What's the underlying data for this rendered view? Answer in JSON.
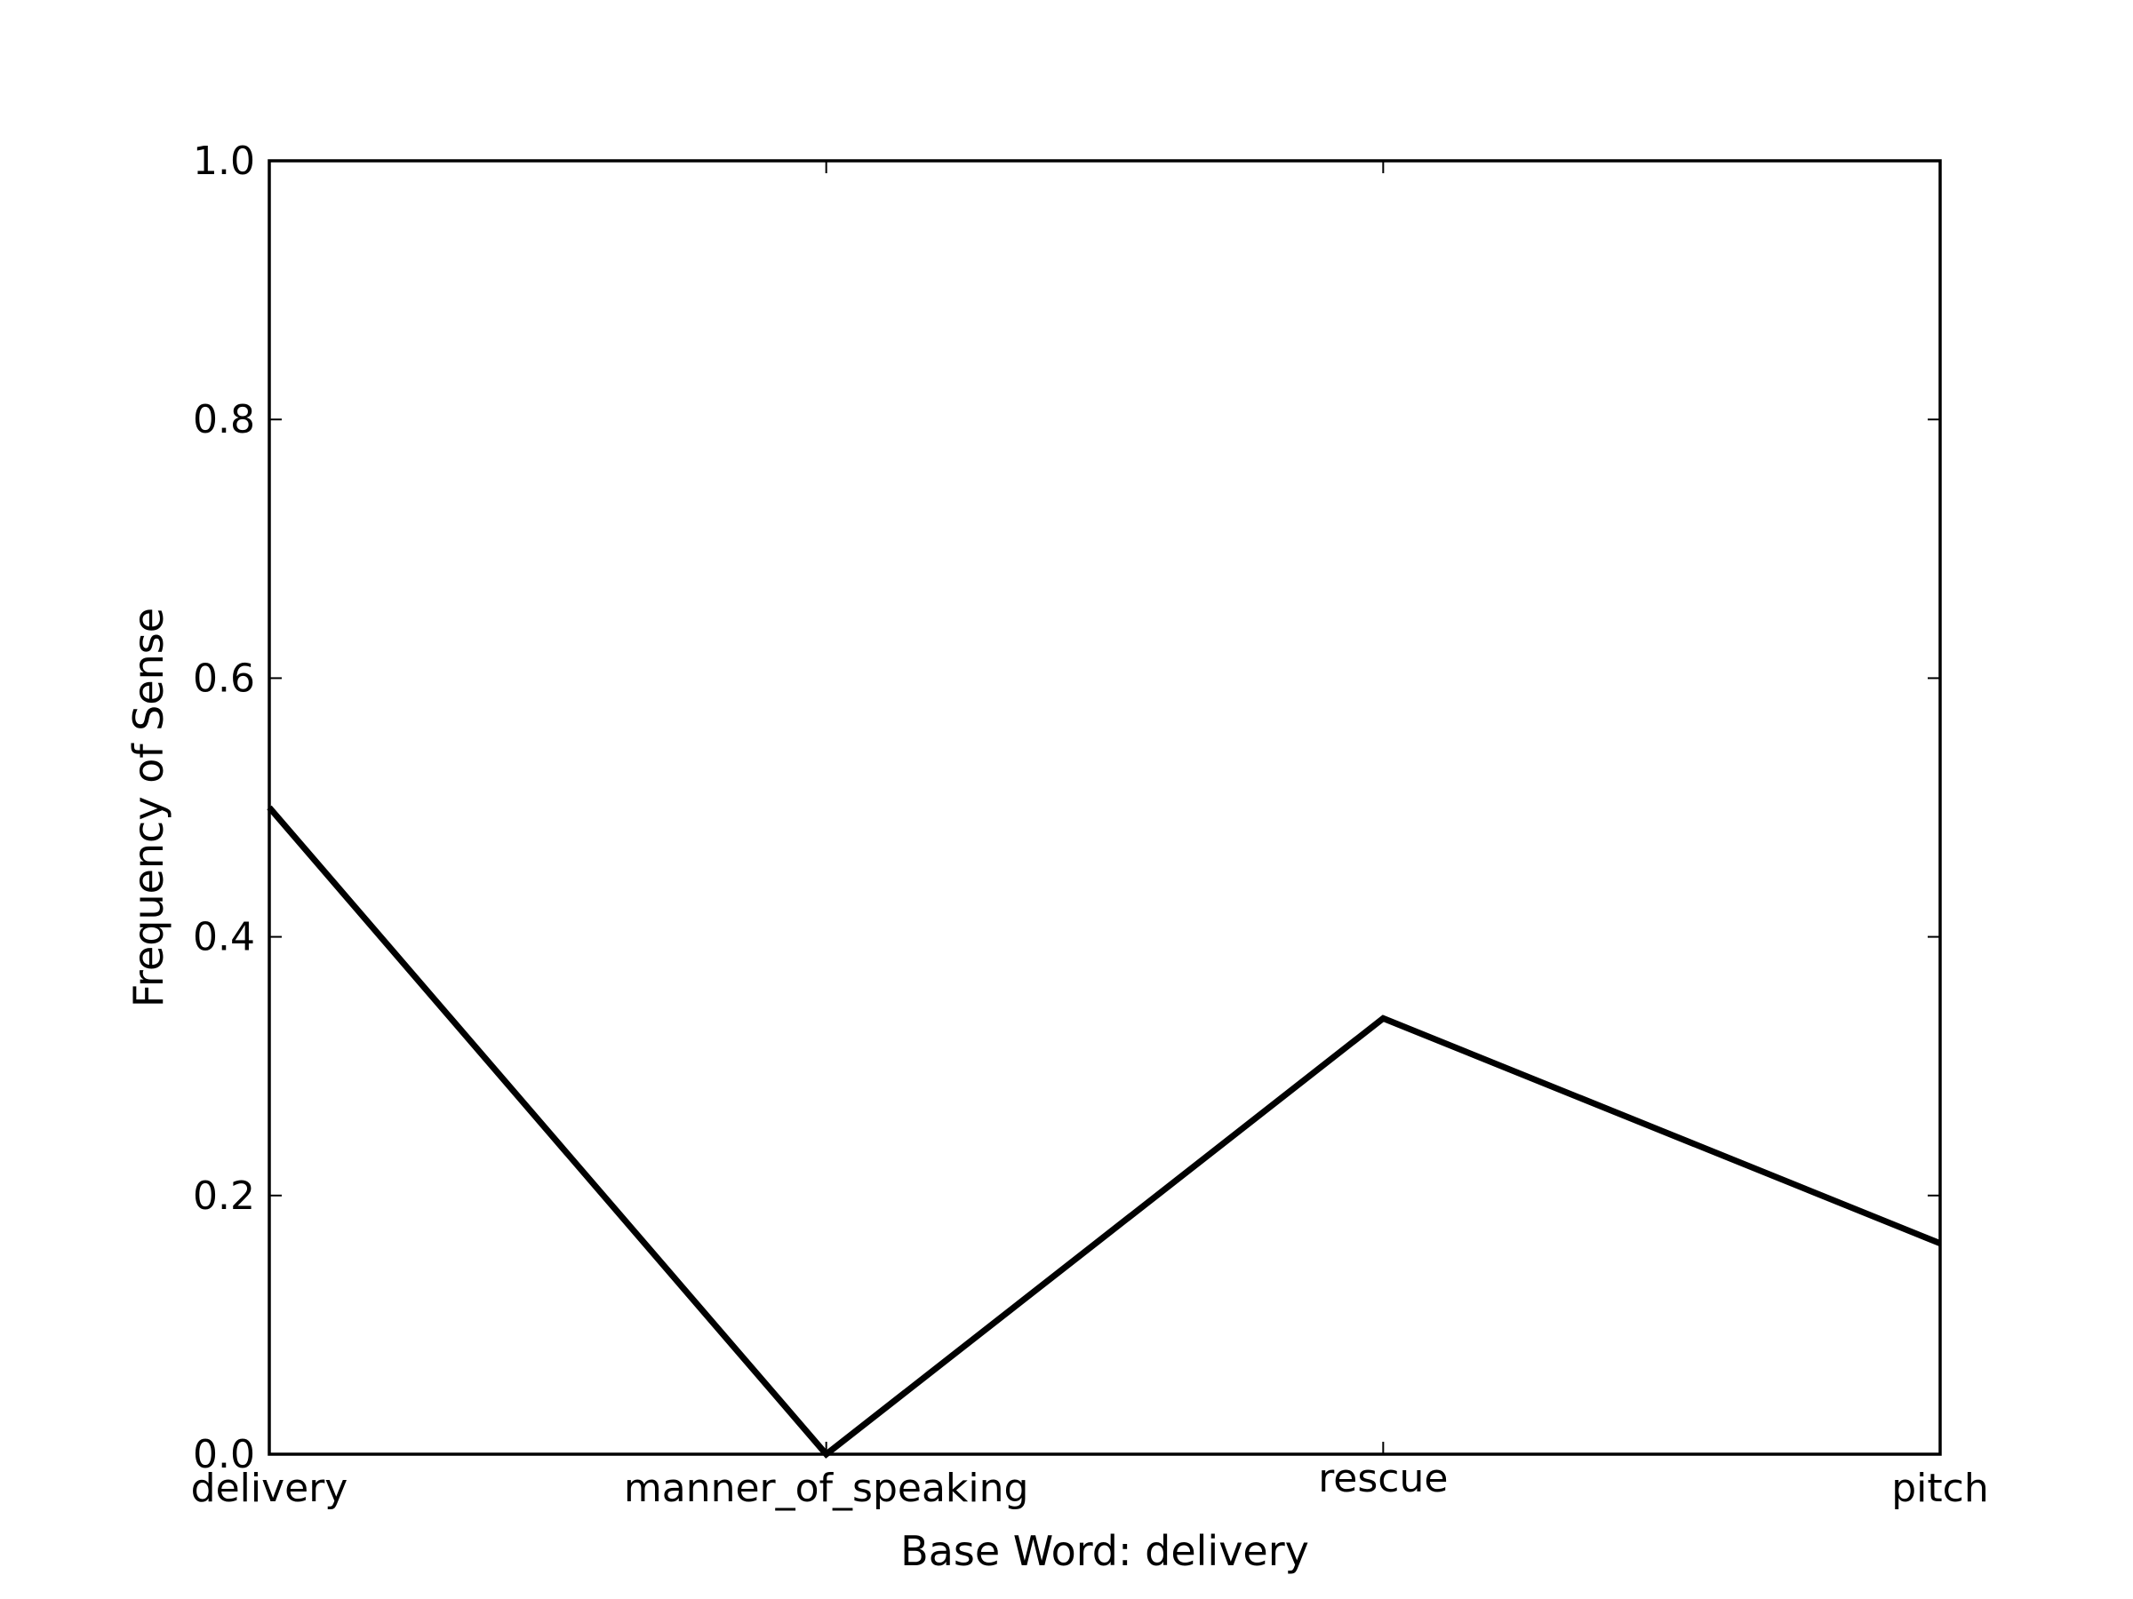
{
  "chart_data": {
    "type": "line",
    "categories": [
      "delivery",
      "manner_of_speaking",
      "rescue",
      "pitch"
    ],
    "series": [
      {
        "values": [
          0.5,
          0.0,
          0.337,
          0.163
        ]
      }
    ],
    "xlabel": "Base Word: delivery",
    "ylabel": "Frequency of Sense",
    "ylim": [
      0,
      1.0
    ],
    "yticks": [
      "0.0",
      "0.2",
      "0.4",
      "0.6",
      "0.8",
      "1.0"
    ],
    "grid": false,
    "legend": "none",
    "line_color": "#000000"
  }
}
